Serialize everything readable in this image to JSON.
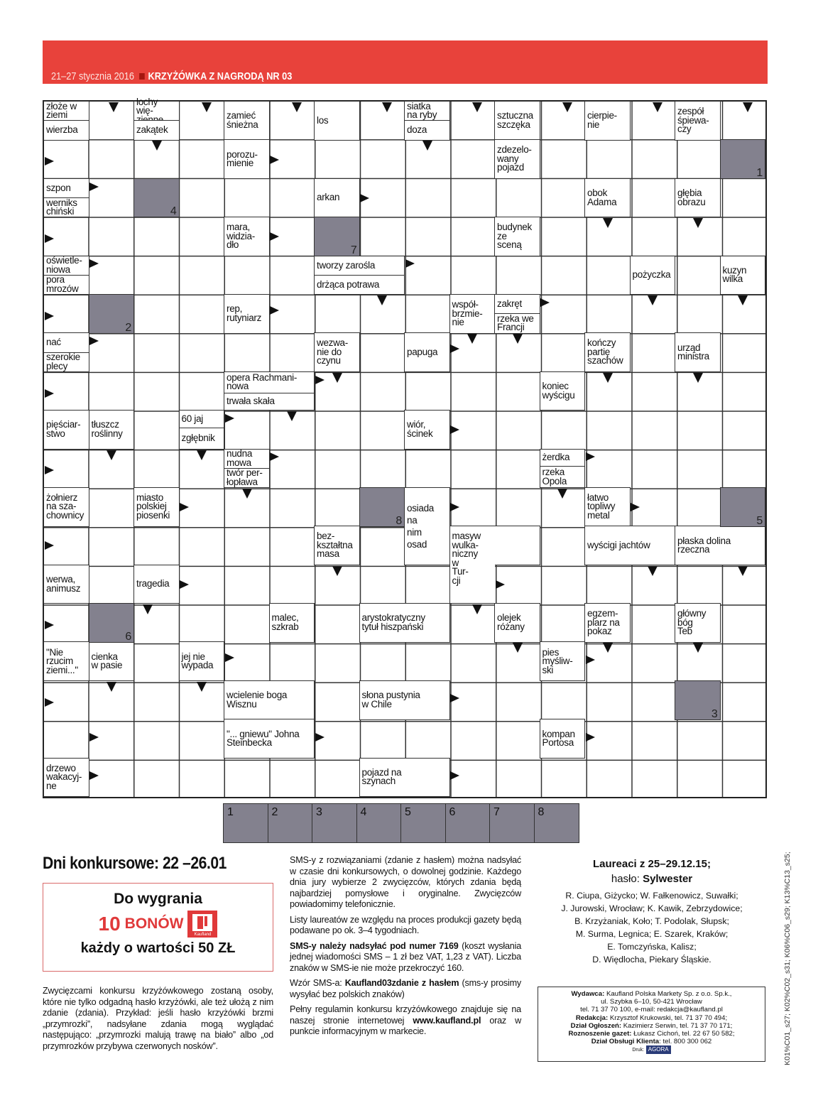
{
  "header": {
    "date_range": "21–27 stycznia 2016",
    "title": "KRZYŻÓWKA Z NAGRODĄ NR 03",
    "accent_color": "#e8423b"
  },
  "crossword": {
    "clues": [
      "złoże w\nziemi",
      "wierzba",
      "lochy wię-\nzienne",
      "zakątek",
      "zamieć\nśnieżna",
      "los",
      "siatka\nna ryby",
      "doza",
      "sztuczna\nszczęka",
      "cierpie-\nnie",
      "zespół\nśpiewa-\nczy",
      "porozu-\nmienie",
      "zdezelo-\nwany\npojazd",
      "szpon",
      "werniks\nchiński",
      "arkan",
      "obok\nAdama",
      "głębia\nobrazu",
      "mara,\nwidzia-\ndło",
      "budynek\nze\nsceną",
      "oświetle-\nniowa",
      "pora\nmrozów",
      "tworzy zarośla",
      "drżąca potrawa",
      "pożyczka",
      "kuzyn\nwilka",
      "rep,\nrutyniarz",
      "współ-\nbrzmie-\nnie",
      "zakręt",
      "rzeka we\nFrancji",
      "nać",
      "szerokie\nplecy",
      "wezwa-\nnie do\nczynu",
      "papuga",
      "kończy\npartię\nszachów",
      "urząd\nministra",
      "opera Rachmani-\nnowa",
      "trwała skała",
      "koniec\nwyścigu",
      "pięściar-\nstwo",
      "tłuszcz\nroślinny",
      "60 jaj",
      "zgłębnik",
      "wiór,\nścinek",
      "nudna\nmowa",
      "twór per-\nłopława",
      "żerdka",
      "rzeka\nOpola",
      "żołnierz\nna sza-\nchownicy",
      "miasto\npolskiej\npiosenki",
      "osiada\nna\nnim\nosad",
      "łatwo\ntopliwy\nmetal",
      "bez-\nkształtna\nmasa",
      "masyw wulka-\nniczny\nw\nTur-\ncji",
      "wyścigi jachtów",
      "płaska dolina\nrzeczna",
      "werwa,\nanimusz",
      "tragedia",
      "malec,\nszkrab",
      "arystokratyczny\ntytuł hiszpański",
      "olejek\nróżany",
      "egzem-\nplarz na\npokaz",
      "główny\nbóg\nTeb",
      "\"Nie\nrzucim\nziemi...\"",
      "cienka\nw pasie",
      "jej nie\nwypada",
      "pies\nmyśliw-\nski",
      "wcielenie boga\nWisznu",
      "słona pustynia\nw Chile",
      "\"... gniewu\" Johna\nSteinbecka",
      "kompan\nPortosa",
      "drzewo\nwakacyj-\nne",
      "pojazd na\nszynach"
    ],
    "solution_numbers": [
      "1",
      "2",
      "3",
      "4",
      "5",
      "6",
      "7",
      "8"
    ],
    "shaded_color": "#83818e"
  },
  "contest": {
    "days": "Dni konkursowe: 22 –26.01",
    "prize_line1": "Do wygrania",
    "prize_count": "10",
    "prize_unit": "BONÓW",
    "logo_text": "Kaufland",
    "prize_line3": "każdy o wartości 50 ZŁ",
    "rules_text": "Zwycięzcami konkursu krzyżówkowego zostaną osoby, które nie tylko odgadną hasło krzyżówki, ale też ułożą z nim zdanie (zdania). Przykład: jeśli hasło krzyżówki brzmi „przymrozki”, nadsyłane zdania mogą wyglądać następująco: „przymrozki malują trawę na biało” albo „od przymrozków przybywa czerwonych nosków”."
  },
  "sms": {
    "p1": "SMS-y z rozwiązaniami (zdanie z hasłem) można nadsyłać w czasie dni konkursowych, o dowolnej godzinie. Każdego dnia jury wybierze 2 zwycięzców, których zdania będą najbardziej pomysłowe i oryginalne. Zwycięzców powiadomimy telefonicznie.",
    "p2": "Listy laureatów ze względu na proces produkcji gazety będą podawane po ok. 3–4 tygodniach.",
    "p3_bold": "SMS-y należy nadsyłać pod numer 7169",
    "p3_rest": " (koszt wysłania jednej wiadomości SMS – 1 zł bez VAT, 1,23 z VAT). Liczba znaków w SMS-ie nie może przekroczyć 160.",
    "p4_a": "Wzór SMS-a: ",
    "p4_bold": "Kaufland03zdanie z hasłem",
    "p4_rest": " (sms-y prosimy wysyłać bez polskich znaków)",
    "p5_a": "Pełny regulamin konkursu krzyżówkowego znajduje się na naszej stronie internetowej ",
    "p5_link": "www.kaufland.pl",
    "p5_rest": " oraz w punkcie informacyjnym w markecie."
  },
  "winners": {
    "title": "Laureaci z 25–29.12.15;",
    "password_label": "hasło: ",
    "password": "Sylwester",
    "lines": [
      "R. Ciupa, Giżycko; W. Fałkenowicz, Suwałki;",
      "J. Jurowski, Wrocław; K. Kawik, Zebrzydowice;",
      "B. Krzyżaniak, Koło; T. Podolak, Słupsk;",
      "M. Surma, Legnica; E. Szarek, Kraków;",
      "E. Tomczyńska, Kalisz;",
      "D. Więdlocha, Piekary Śląskie."
    ]
  },
  "imprint": {
    "publisher_label": "Wydawca:",
    "publisher": " Kaufland Polska Markety Sp. z o.o. Sp.k.,",
    "address": "ul. Szybka 6–10, 50-421 Wrocław",
    "contact": "tel. 71 37 70 100, e-mail: redakcja@kaufland.pl",
    "editor_label": "Redakcja:",
    "editor": " Krzysztof Krukowski, tel. 71 37 70 494;",
    "ads_label": "Dział Ogłoszeń:",
    "ads": " Kazimierz Serwin, tel. 71 37 70 171;",
    "delivery_label": "Roznoszenie gazet:",
    "delivery": " Łukasz Cichoń, tel. 22 67 50 582;",
    "service_label": "Dział Obsługi Klienta",
    "service": ": tel. 800 300 062",
    "print_label": "Druk:",
    "printer": "AGORA"
  },
  "margin_code": "K01%C01_s27;  K02%C02_s31;  K06%C06_s29;  K13%C13_s25;"
}
